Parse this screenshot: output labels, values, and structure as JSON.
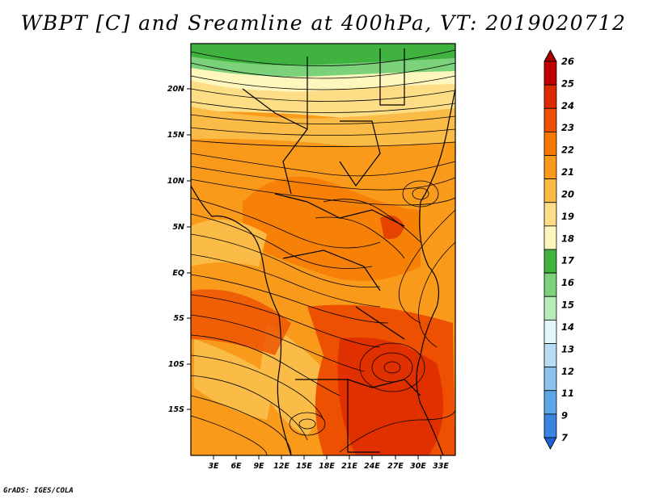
{
  "title": "WBPT [C] and Sreamline at 400hPa, VT: 2019020712",
  "credit": "GrADS: IGES/COLA",
  "lat_labels": [
    "20N",
    "15N",
    "10N",
    "5N",
    "EQ",
    "5S",
    "10S",
    "15S"
  ],
  "lon_labels": [
    "3E",
    "6E",
    "9E",
    "12E",
    "15E",
    "18E",
    "21E",
    "24E",
    "27E",
    "30E",
    "33E"
  ],
  "colorbar": {
    "labels": [
      "26",
      "25",
      "24",
      "23",
      "22",
      "21",
      "20",
      "19",
      "18",
      "17",
      "16",
      "15",
      "14",
      "13",
      "12",
      "11",
      "9",
      "7"
    ],
    "colors": [
      "#a50000",
      "#c00000",
      "#de2a00",
      "#ed5000",
      "#f57800",
      "#f99a1a",
      "#fbbc47",
      "#fddd85",
      "#fdf6bd",
      "#3fb23f",
      "#7bd27b",
      "#b7ecb7",
      "#e4f8fb",
      "#b8ddf5",
      "#8bc3f0",
      "#5ea5e8",
      "#3a85e0",
      "#1e5fd6"
    ]
  }
}
